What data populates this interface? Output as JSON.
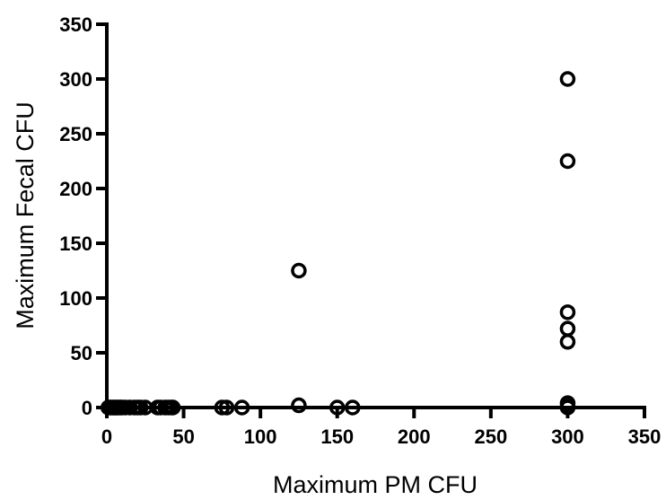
{
  "chart_data": {
    "type": "scatter",
    "title": "",
    "xlabel": "Maximum PM CFU",
    "ylabel": "Maximum Fecal CFU",
    "xlim": [
      0,
      350
    ],
    "ylim": [
      0,
      350
    ],
    "xticks": [
      "0",
      "50",
      "100",
      "150",
      "200",
      "250",
      "300",
      "350"
    ],
    "yticks": [
      "0",
      "50",
      "100",
      "150",
      "200",
      "250",
      "300",
      "350"
    ],
    "grid": false,
    "marker": "open-circle",
    "colors": {
      "marker": "#000000",
      "axis": "#000000",
      "background": "#ffffff"
    },
    "points": [
      {
        "x": 1,
        "y": 0
      },
      {
        "x": 2,
        "y": 0
      },
      {
        "x": 3,
        "y": 0
      },
      {
        "x": 4,
        "y": 0
      },
      {
        "x": 5,
        "y": 0
      },
      {
        "x": 6,
        "y": 0
      },
      {
        "x": 7,
        "y": 0
      },
      {
        "x": 8,
        "y": 0
      },
      {
        "x": 9,
        "y": 0
      },
      {
        "x": 10,
        "y": 0
      },
      {
        "x": 12,
        "y": 0
      },
      {
        "x": 15,
        "y": 0
      },
      {
        "x": 18,
        "y": 0
      },
      {
        "x": 20,
        "y": 0
      },
      {
        "x": 22,
        "y": 0
      },
      {
        "x": 25,
        "y": 0
      },
      {
        "x": 33,
        "y": 0
      },
      {
        "x": 35,
        "y": 0
      },
      {
        "x": 38,
        "y": 0
      },
      {
        "x": 40,
        "y": 0
      },
      {
        "x": 42,
        "y": 0
      },
      {
        "x": 43,
        "y": 0
      },
      {
        "x": 75,
        "y": 0
      },
      {
        "x": 78,
        "y": 0
      },
      {
        "x": 88,
        "y": 0
      },
      {
        "x": 125,
        "y": 125
      },
      {
        "x": 125,
        "y": 2
      },
      {
        "x": 150,
        "y": 0
      },
      {
        "x": 160,
        "y": 0
      },
      {
        "x": 300,
        "y": 300
      },
      {
        "x": 300,
        "y": 225
      },
      {
        "x": 300,
        "y": 87
      },
      {
        "x": 300,
        "y": 72
      },
      {
        "x": 300,
        "y": 60
      },
      {
        "x": 300,
        "y": 4
      },
      {
        "x": 300,
        "y": 1
      },
      {
        "x": 300,
        "y": 0
      }
    ]
  }
}
